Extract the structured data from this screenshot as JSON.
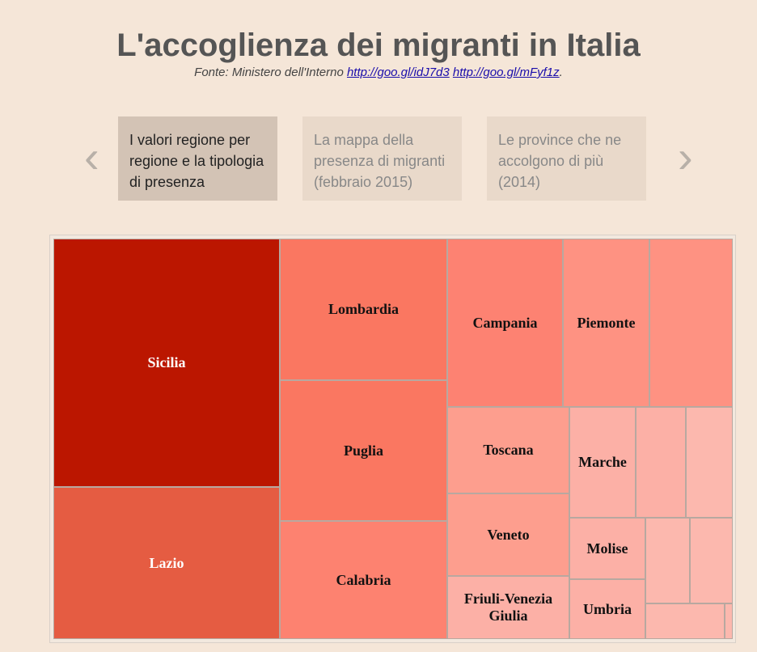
{
  "header": {
    "title": "L'accoglienza dei migranti in Italia",
    "source": "Fonte: Ministero dell'Interno",
    "links": [
      "http://goo.gl/idJ7d3",
      "http://goo.gl/mFyf1z"
    ],
    "source_end": "."
  },
  "tabs": [
    "I valori regione per regione e la tipologia di presenza",
    "La mappa della presenza di migranti (febbraio 2015)",
    "Le province che ne accolgono di più (2014)"
  ],
  "treemap": {
    "labels": [
      "Sicilia",
      "Lazio",
      "Lombardia",
      "Puglia",
      "Calabria",
      "Campania",
      "Piemonte",
      "Toscana",
      "Marche",
      "Veneto",
      "Friuli-Venezia Giulia",
      "Molise",
      "Umbria"
    ]
  }
}
